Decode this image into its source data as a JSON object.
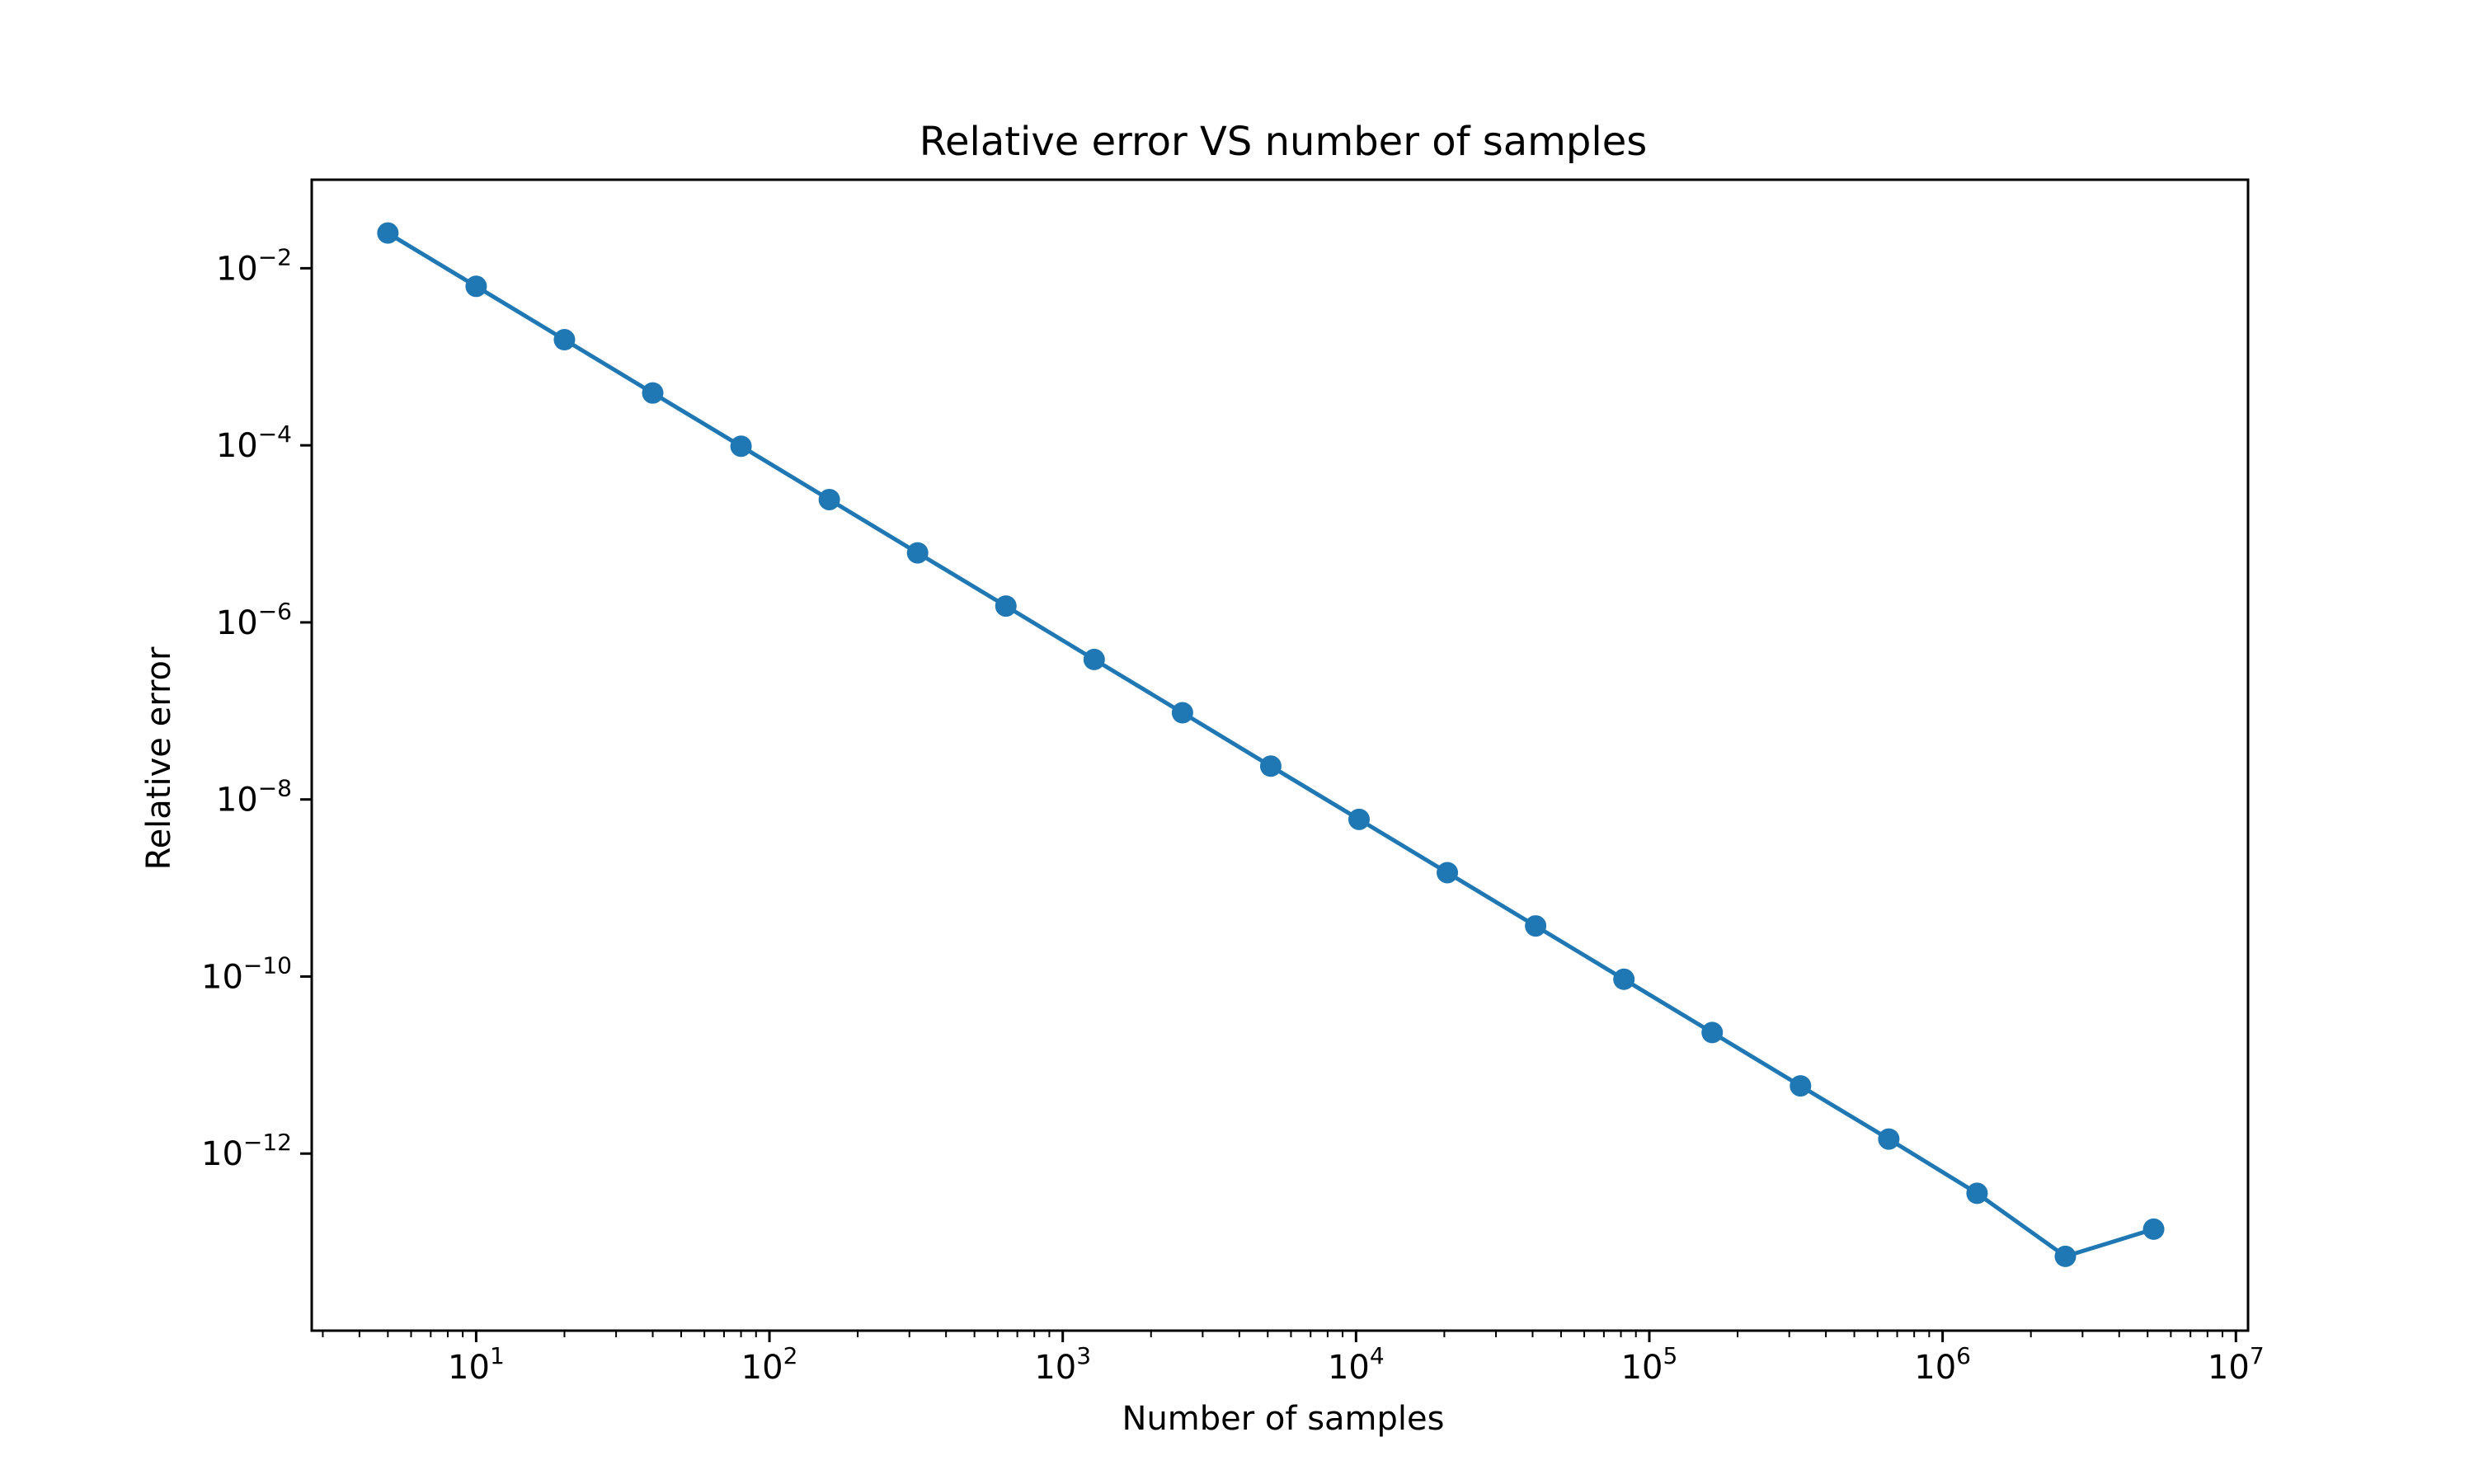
{
  "chart_data": {
    "type": "line",
    "title": "Relative error VS number of samples",
    "xlabel": "Number of samples",
    "ylabel": "Relative error",
    "xscale": "log",
    "yscale": "log",
    "xlim": [
      2.75,
      11000000
    ],
    "ylim": [
      1e-14,
      0.1
    ],
    "grid": false,
    "marker": "circle",
    "x_ticks": [
      {
        "mantissa": "10",
        "exp": "1"
      },
      {
        "mantissa": "10",
        "exp": "2"
      },
      {
        "mantissa": "10",
        "exp": "3"
      },
      {
        "mantissa": "10",
        "exp": "4"
      },
      {
        "mantissa": "10",
        "exp": "5"
      },
      {
        "mantissa": "10",
        "exp": "6"
      },
      {
        "mantissa": "10",
        "exp": "7"
      }
    ],
    "y_ticks": [
      {
        "mantissa": "10",
        "exp": "−2"
      },
      {
        "mantissa": "10",
        "exp": "−4"
      },
      {
        "mantissa": "10",
        "exp": "−6"
      },
      {
        "mantissa": "10",
        "exp": "−8"
      },
      {
        "mantissa": "10",
        "exp": "−10"
      },
      {
        "mantissa": "10",
        "exp": "−12"
      }
    ],
    "series": [
      {
        "color": "#1f77b4",
        "x": [
          5,
          10,
          20,
          40,
          80,
          160,
          320,
          640,
          1280,
          2560,
          5120,
          10240,
          20480,
          40960,
          81920,
          163840,
          327680,
          655360,
          1310720,
          2621440,
          5242880
        ],
        "y": [
          0.025,
          0.00625,
          0.00156,
          0.00039,
          9.77e-05,
          2.44e-05,
          6.1e-06,
          1.53e-06,
          3.81e-07,
          9.54e-08,
          2.38e-08,
          5.96e-09,
          1.49e-09,
          3.73e-10,
          9.31e-11,
          2.33e-11,
          5.82e-12,
          1.46e-12,
          3.56e-13,
          6.9e-14,
          1.4e-13
        ]
      }
    ]
  }
}
